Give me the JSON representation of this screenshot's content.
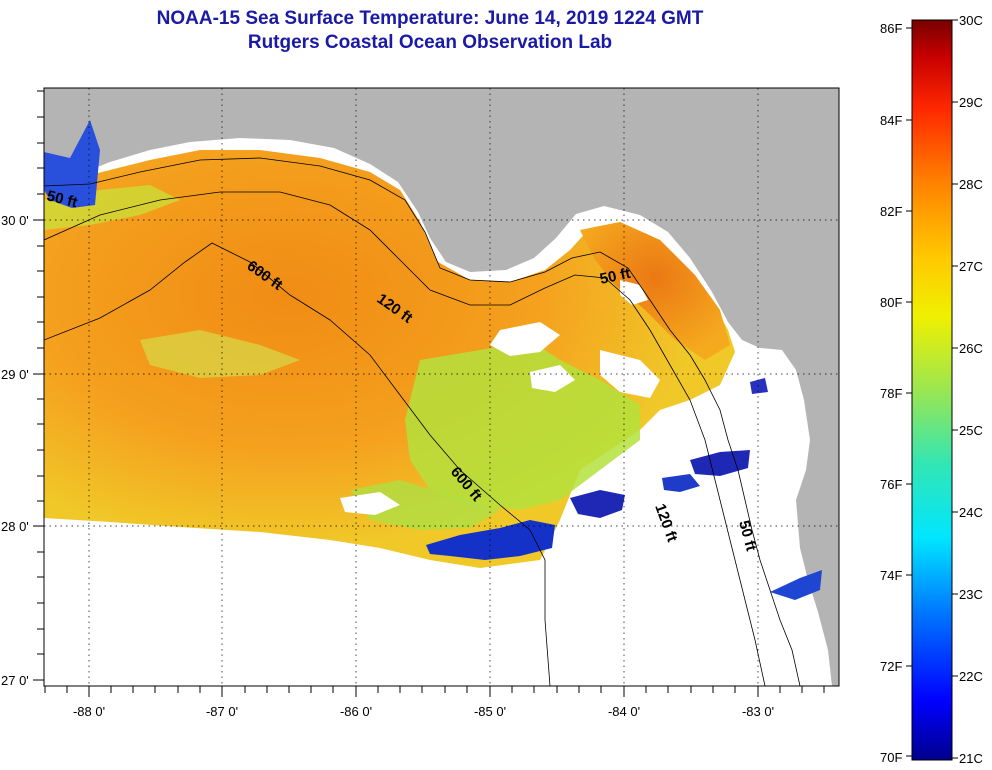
{
  "header": {
    "title": "NOAA-15 Sea Surface Temperature:  June 14, 2019 1224 GMT",
    "subtitle": "Rutgers Coastal Ocean Observation Lab"
  },
  "map": {
    "longitude_labels": [
      "-88 0'",
      "-87 0'",
      "-86 0'",
      "-85 0'",
      "-84 0'",
      "-83 0'"
    ],
    "latitude_labels": [
      "30 0'",
      "29 0'",
      "28 0'",
      "27 0'"
    ],
    "contour_labels": [
      "50 ft",
      "600 ft",
      "120 ft",
      "50 ft",
      "600 ft",
      "120 ft",
      "50 ft"
    ],
    "land_color": "#b4b4b4",
    "no_data_color": "#ffffff"
  },
  "colorbar": {
    "fahrenheit_labels": [
      "86F",
      "84F",
      "82F",
      "80F",
      "78F",
      "76F",
      "74F",
      "72F",
      "70F"
    ],
    "celsius_labels": [
      "30C",
      "29C",
      "28C",
      "27C",
      "26C",
      "25C",
      "24C",
      "23C",
      "22C",
      "21C"
    ],
    "colors": [
      "#00008c",
      "#0000ff",
      "#0078ff",
      "#00e6ff",
      "#32e6b4",
      "#9be650",
      "#f0f000",
      "#ffc800",
      "#ff8200",
      "#ff2800",
      "#c80000",
      "#780000"
    ]
  }
}
